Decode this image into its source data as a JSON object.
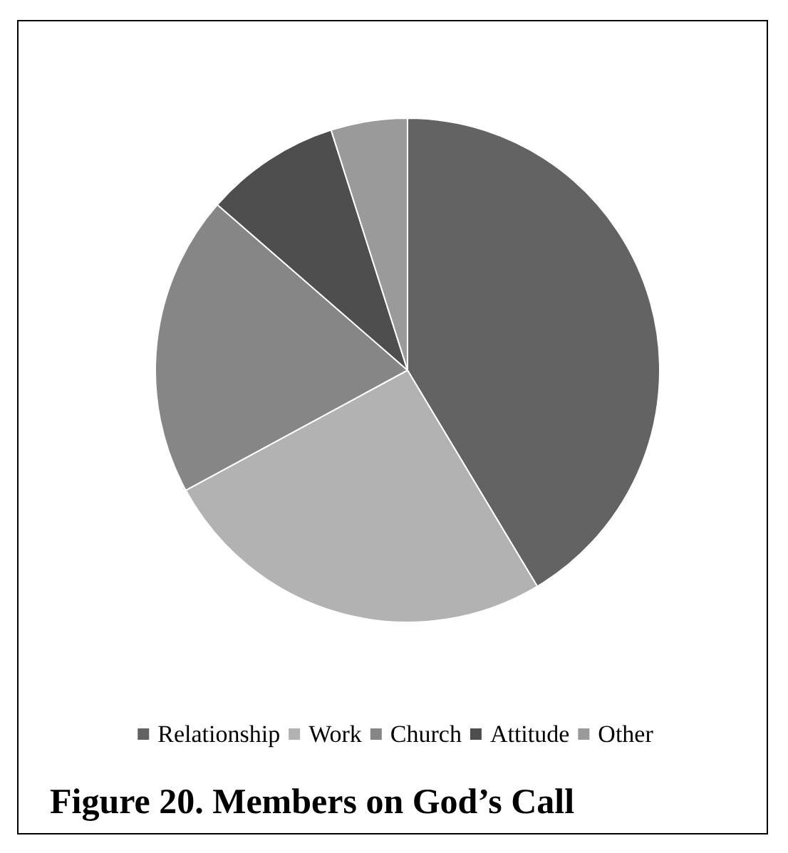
{
  "chart_data": {
    "type": "pie",
    "title": "Figure 20. Members on God’s Call",
    "categories": [
      "Relationship",
      "Work",
      "Church",
      "Attitude",
      "Other"
    ],
    "values": [
      41.4,
      25.7,
      19.3,
      8.7,
      4.9
    ],
    "colors": [
      "#636363",
      "#b2b2b2",
      "#868686",
      "#4e4e4e",
      "#9a9a9a"
    ],
    "legend": "bottom"
  }
}
